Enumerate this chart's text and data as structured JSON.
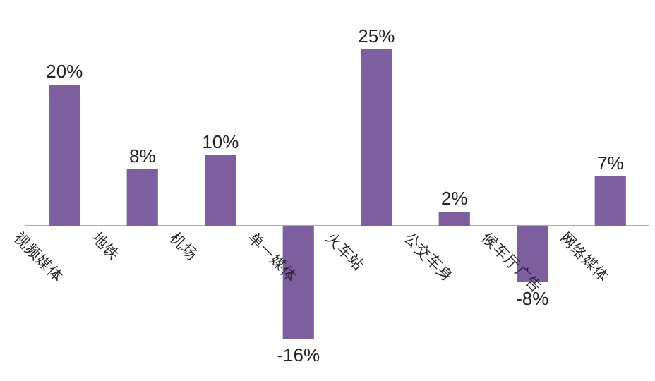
{
  "chart_data": {
    "type": "bar",
    "categories": [
      "视频媒体",
      "地铁",
      "机场",
      "单一媒体",
      "火车站",
      "公交车身",
      "候车厅广告",
      "网络媒体"
    ],
    "values": [
      20,
      8,
      10,
      -16,
      25,
      2,
      -8,
      7
    ],
    "value_labels": [
      "20%",
      "8%",
      "10%",
      "-16%",
      "25%",
      "2%",
      "-8%",
      "7%"
    ],
    "color": "#7d5f9f"
  }
}
